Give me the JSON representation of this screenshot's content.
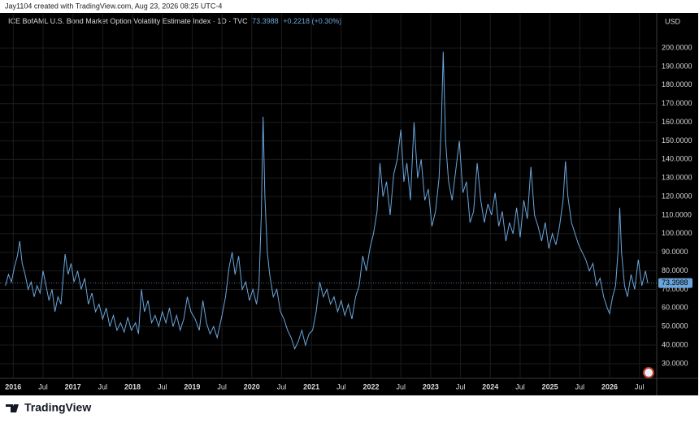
{
  "header": "Jay1104 created with TradingView.com, Aug 23, 2026 08:25 UTC-4",
  "footer": "TradingView",
  "chart_data": {
    "type": "line",
    "title": "ICE BofAML U.S. Bond Market Option Volatility Estimate Index · 1D · TVC",
    "change": "+0.2218 (+0.30%)",
    "currency": "USD",
    "color": "#6aa6dc",
    "grid": true,
    "xlim": [
      2015.86,
      2026.79
    ],
    "ylim": [
      22.1,
      218.4
    ],
    "xticks": [
      2016,
      {
        "value": 2016.5,
        "label": "Jul"
      },
      2017,
      {
        "value": 2017.5,
        "label": "Jul"
      },
      2018,
      {
        "value": 2018.5,
        "label": "Jul"
      },
      2019,
      {
        "value": 2019.5,
        "label": "Jul"
      },
      2020,
      {
        "value": 2020.5,
        "label": "Jul"
      },
      2021,
      {
        "value": 2021.5,
        "label": "Jul"
      },
      2022,
      {
        "value": 2022.5,
        "label": "Jul"
      },
      2023,
      {
        "value": 2023.5,
        "label": "Jul"
      },
      2024,
      {
        "value": 2024.5,
        "label": "Jul"
      },
      2025,
      {
        "value": 2025.5,
        "label": "Jul"
      },
      2026,
      {
        "value": 2026.5,
        "label": "Jul"
      }
    ],
    "yticks": [
      {
        "value": 30,
        "label": "30.0000"
      },
      {
        "value": 40,
        "label": "40.0000"
      },
      {
        "value": 50,
        "label": "50.0000"
      },
      {
        "value": 60,
        "label": "60.0000"
      },
      {
        "value": 70,
        "label": "70.0000"
      },
      {
        "value": 80,
        "label": "80.0000"
      },
      {
        "value": 90,
        "label": "90.0000"
      },
      {
        "value": 100,
        "label": "100.0000"
      },
      {
        "value": 110,
        "label": "110.0000"
      },
      {
        "value": 120,
        "label": "120.0000"
      },
      {
        "value": 130,
        "label": "130.0000"
      },
      {
        "value": 140,
        "label": "140.0000"
      },
      {
        "value": 150,
        "label": "150.0000"
      },
      {
        "value": 160,
        "label": "160.0000"
      },
      {
        "value": 170,
        "label": "170.0000"
      },
      {
        "value": 180,
        "label": "180.0000"
      },
      {
        "value": 190,
        "label": "190.0000"
      },
      {
        "value": 200,
        "label": "200.0000"
      }
    ],
    "x": [
      2015.87,
      2015.92,
      2015.97,
      2016.02,
      2016.07,
      2016.11,
      2016.15,
      2016.2,
      2016.25,
      2016.3,
      2016.35,
      2016.4,
      2016.45,
      2016.5,
      2016.55,
      2016.6,
      2016.65,
      2016.7,
      2016.75,
      2016.8,
      2016.87,
      2016.92,
      2016.97,
      2017.02,
      2017.08,
      2017.14,
      2017.2,
      2017.26,
      2017.32,
      2017.38,
      2017.44,
      2017.5,
      2017.56,
      2017.62,
      2017.68,
      2017.74,
      2017.8,
      2017.86,
      2017.92,
      2017.98,
      2018.05,
      2018.1,
      2018.15,
      2018.2,
      2018.26,
      2018.32,
      2018.38,
      2018.44,
      2018.5,
      2018.56,
      2018.62,
      2018.68,
      2018.74,
      2018.8,
      2018.86,
      2018.92,
      2018.98,
      2019.05,
      2019.12,
      2019.18,
      2019.24,
      2019.3,
      2019.36,
      2019.42,
      2019.5,
      2019.56,
      2019.62,
      2019.67,
      2019.72,
      2019.78,
      2019.84,
      2019.9,
      2019.96,
      2020.02,
      2020.08,
      2020.12,
      2020.16,
      2020.19,
      2020.22,
      2020.26,
      2020.3,
      2020.36,
      2020.42,
      2020.48,
      2020.54,
      2020.6,
      2020.66,
      2020.72,
      2020.78,
      2020.84,
      2020.9,
      2020.96,
      2021.02,
      2021.08,
      2021.14,
      2021.2,
      2021.26,
      2021.32,
      2021.38,
      2021.44,
      2021.5,
      2021.56,
      2021.62,
      2021.68,
      2021.74,
      2021.8,
      2021.86,
      2021.92,
      2021.98,
      2022.04,
      2022.1,
      2022.15,
      2022.2,
      2022.26,
      2022.32,
      2022.38,
      2022.44,
      2022.5,
      2022.55,
      2022.6,
      2022.66,
      2022.72,
      2022.78,
      2022.84,
      2022.9,
      2022.96,
      2023.02,
      2023.08,
      2023.14,
      2023.18,
      2023.21,
      2023.25,
      2023.3,
      2023.36,
      2023.42,
      2023.48,
      2023.54,
      2023.6,
      2023.66,
      2023.72,
      2023.78,
      2023.84,
      2023.9,
      2023.96,
      2024.02,
      2024.08,
      2024.14,
      2024.2,
      2024.26,
      2024.32,
      2024.38,
      2024.44,
      2024.5,
      2024.56,
      2024.62,
      2024.68,
      2024.74,
      2024.8,
      2024.86,
      2024.92,
      2024.98,
      2025.04,
      2025.1,
      2025.16,
      2025.22,
      2025.26,
      2025.3,
      2025.36,
      2025.42,
      2025.48,
      2025.54,
      2025.6,
      2025.66,
      2025.72,
      2025.78,
      2025.84,
      2025.9,
      2025.96,
      2026.0,
      2026.05,
      2026.1,
      2026.14,
      2026.17,
      2026.2,
      2026.25,
      2026.3,
      2026.36,
      2026.42,
      2026.48,
      2026.54,
      2026.6,
      2026.64
    ],
    "values": [
      72,
      78,
      74,
      82,
      88,
      96,
      84,
      78,
      70,
      74,
      66,
      72,
      68,
      80,
      72,
      64,
      70,
      58,
      66,
      62,
      89,
      78,
      84,
      74,
      80,
      70,
      76,
      62,
      68,
      58,
      62,
      54,
      60,
      50,
      56,
      48,
      52,
      47,
      55,
      48,
      52,
      46,
      70,
      58,
      64,
      52,
      56,
      50,
      58,
      52,
      60,
      50,
      56,
      48,
      54,
      66,
      58,
      54,
      48,
      64,
      52,
      46,
      50,
      44,
      56,
      66,
      82,
      90,
      78,
      88,
      70,
      74,
      64,
      70,
      62,
      72,
      110,
      163,
      120,
      90,
      78,
      66,
      70,
      58,
      54,
      48,
      44,
      38,
      42,
      48,
      40,
      46,
      48,
      58,
      74,
      66,
      70,
      62,
      66,
      58,
      64,
      56,
      62,
      54,
      66,
      72,
      88,
      80,
      92,
      100,
      112,
      138,
      120,
      128,
      110,
      132,
      140,
      156,
      128,
      138,
      118,
      160,
      130,
      140,
      118,
      124,
      104,
      112,
      130,
      160,
      198,
      150,
      128,
      118,
      134,
      150,
      122,
      128,
      106,
      112,
      138,
      118,
      106,
      116,
      110,
      122,
      104,
      112,
      96,
      106,
      100,
      114,
      98,
      118,
      108,
      136,
      110,
      104,
      96,
      106,
      92,
      100,
      94,
      104,
      118,
      139,
      120,
      106,
      100,
      94,
      90,
      86,
      80,
      84,
      72,
      76,
      66,
      60,
      57,
      66,
      72,
      90,
      114,
      90,
      72,
      66,
      78,
      70,
      86,
      72,
      80,
      73.3988
    ]
  }
}
